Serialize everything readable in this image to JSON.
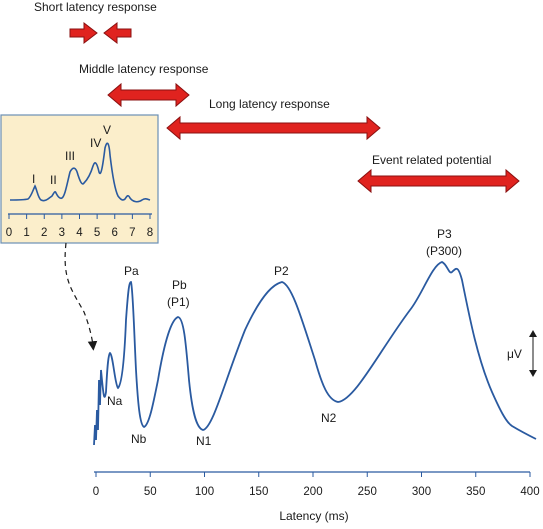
{
  "responses": [
    {
      "label": "Short latency response"
    },
    {
      "label": "Middle latency response"
    },
    {
      "label": "Long latency response"
    },
    {
      "label": "Event related potential"
    }
  ],
  "inset": {
    "wave_labels": [
      "I",
      "II",
      "III",
      "IV",
      "V"
    ],
    "ticks": [
      "0",
      "1",
      "2",
      "3",
      "4",
      "5",
      "6",
      "7",
      "8"
    ]
  },
  "main": {
    "peaks": {
      "na": "Na",
      "pa": "Pa",
      "nb": "Nb",
      "pb": "Pb",
      "p1": "(P1)",
      "n1": "N1",
      "p2": "P2",
      "n2": "N2",
      "p3": "P3",
      "p300": "(P300)"
    },
    "amplitude_label": "μV",
    "ticks": [
      "0",
      "50",
      "100",
      "150",
      "200",
      "250",
      "300",
      "350",
      "400"
    ],
    "xlabel": "Latency (ms)"
  },
  "colors": {
    "wave": "#2a5aa0",
    "arrow_fill": "#e0231f",
    "arrow_stroke": "#8a1010",
    "inset_bg": "#fbeecb",
    "inset_border": "#6b8fb5"
  }
}
